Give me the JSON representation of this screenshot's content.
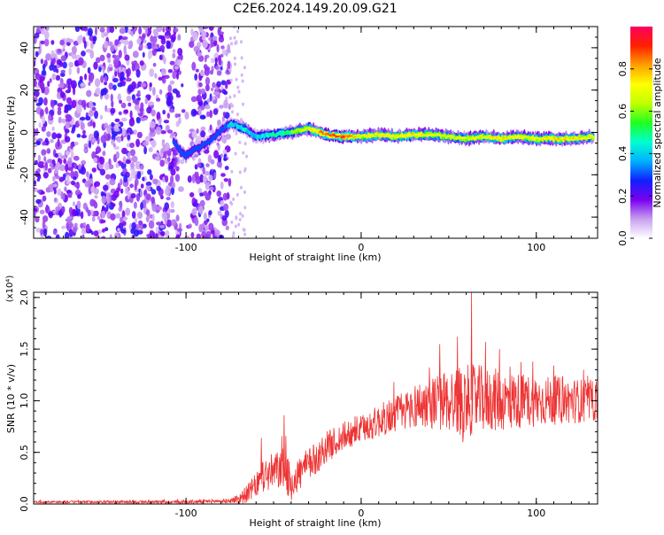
{
  "title": "C2E6.2024.149.20.09.G21",
  "chart_data": [
    {
      "type": "heatmap",
      "xlabel": "Height of straight line (km)",
      "ylabel": "Frequency (Hz)",
      "xlim": [
        -187,
        135
      ],
      "ylim": [
        -50,
        50
      ],
      "x_ticks": [
        -100,
        0,
        100
      ],
      "y_ticks": [
        -40,
        -20,
        0,
        20,
        40
      ],
      "colorbar": {
        "label": "Normalized spectral amplitude",
        "range": [
          0,
          1
        ],
        "ticks": [
          0.0,
          0.2,
          0.4,
          0.6,
          0.8
        ],
        "colors": [
          "#ffffff",
          "#c8a0f0",
          "#7a00f0",
          "#1020ff",
          "#00b0ff",
          "#00ffd0",
          "#20ff20",
          "#c0ff00",
          "#ffff00",
          "#ffa000",
          "#ff2000",
          "#ff0060"
        ]
      },
      "signal_track": {
        "x": [
          -107,
          -103,
          -100,
          -95,
          -90,
          -85,
          -80,
          -75,
          -70,
          -65,
          -60,
          -50,
          -40,
          -30,
          -20,
          -10,
          0,
          10,
          20,
          30,
          40,
          50,
          60,
          70,
          80,
          90,
          100,
          110,
          120,
          133
        ],
        "freq": [
          -4,
          -9,
          -11,
          -8,
          -6,
          -3,
          1,
          4,
          3,
          1,
          -2,
          -1,
          0,
          2,
          -1,
          -2,
          -2,
          -1,
          -2,
          -1,
          -1,
          -2,
          -3,
          -2,
          -3,
          -2,
          -3,
          -3,
          -3,
          -2
        ],
        "amplitude": [
          0.3,
          0.3,
          0.35,
          0.25,
          0.2,
          0.25,
          0.3,
          0.45,
          0.5,
          0.5,
          0.45,
          0.55,
          0.6,
          0.7,
          0.85,
          0.9,
          0.7,
          0.75,
          0.7,
          0.75,
          0.7,
          0.7,
          0.7,
          0.7,
          0.75,
          0.7,
          0.7,
          0.75,
          0.75,
          0.7
        ]
      }
    },
    {
      "type": "line",
      "xlabel": "Height of straight line (km)",
      "ylabel": "SNR (10 * v/v)",
      "y_multiplier": "(x10⁴)",
      "xlim": [
        -187,
        135
      ],
      "ylim": [
        0,
        2.05
      ],
      "x_ticks": [
        -100,
        0,
        100
      ],
      "y_ticks": [
        0.0,
        0.5,
        1.0,
        1.5,
        2.0
      ],
      "y_tick_labels": [
        "0.0",
        "0.5",
        "1.0",
        "1.5",
        "2.0"
      ],
      "color": "#ee3333",
      "envelope_x": [
        -187,
        -100,
        -75,
        -70,
        -65,
        -60,
        -55,
        -50,
        -45,
        -40,
        -35,
        -30,
        -25,
        -20,
        -15,
        -10,
        -5,
        0,
        10,
        20,
        25,
        30,
        40,
        50,
        60,
        70,
        80,
        90,
        100,
        110,
        120,
        135
      ],
      "envelope_y": [
        0.02,
        0.02,
        0.03,
        0.05,
        0.1,
        0.18,
        0.28,
        0.3,
        0.35,
        0.2,
        0.3,
        0.38,
        0.45,
        0.55,
        0.6,
        0.65,
        0.7,
        0.72,
        0.8,
        0.88,
        0.9,
        0.95,
        0.98,
        1.0,
        1.0,
        1.02,
        1.0,
        1.0,
        1.0,
        1.0,
        1.0,
        1.0
      ],
      "noise_amp_x": [
        -187,
        -75,
        -60,
        -50,
        -40,
        -20,
        0,
        20,
        40,
        50,
        60,
        80,
        100,
        135
      ],
      "noise_amp_y": [
        0.01,
        0.02,
        0.12,
        0.2,
        0.18,
        0.15,
        0.14,
        0.18,
        0.25,
        0.32,
        0.35,
        0.3,
        0.25,
        0.2
      ],
      "peaks": [
        [
          -57,
          0.64
        ],
        [
          -44,
          0.86
        ],
        [
          -43,
          0.66
        ],
        [
          63,
          2.05
        ],
        [
          55,
          1.62
        ],
        [
          71,
          1.57
        ],
        [
          79,
          1.5
        ],
        [
          85,
          1.33
        ],
        [
          98,
          1.38
        ],
        [
          127,
          1.3
        ],
        [
          110,
          1.34
        ]
      ]
    }
  ]
}
